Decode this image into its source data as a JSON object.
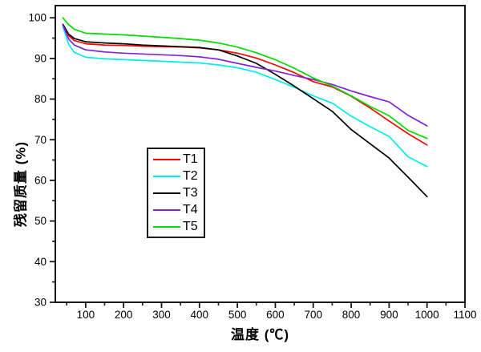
{
  "chart_data": {
    "type": "line",
    "title": "",
    "xlabel": "温度 (℃)",
    "ylabel": "残留质量 (%)",
    "xlim": [
      20,
      1100
    ],
    "ylim": [
      30,
      103
    ],
    "grid": false,
    "legend_position": "inside-center-left",
    "axis_color": "#1a1a1a",
    "x_major_ticks": [
      100,
      200,
      300,
      400,
      500,
      600,
      700,
      800,
      900,
      1000,
      1100
    ],
    "x_minor_step": 50,
    "y_major_ticks": [
      30,
      40,
      50,
      60,
      70,
      80,
      90,
      100
    ],
    "y_minor_step": 5,
    "x": [
      40,
      55,
      70,
      100,
      150,
      200,
      250,
      300,
      350,
      400,
      450,
      500,
      550,
      600,
      650,
      700,
      750,
      800,
      850,
      900,
      950,
      1000
    ],
    "series": [
      {
        "name": "T1",
        "color": "#ff0000",
        "values": [
          98.3,
          95.6,
          94.4,
          93.6,
          93.3,
          93.2,
          93.0,
          92.9,
          92.8,
          92.6,
          92.1,
          91.3,
          90.1,
          88.4,
          86.5,
          84.3,
          83.0,
          80.7,
          77.8,
          74.6,
          71.5,
          68.7
        ]
      },
      {
        "name": "T2",
        "color": "#00eded",
        "values": [
          97.8,
          93.5,
          91.5,
          90.3,
          89.9,
          89.7,
          89.5,
          89.3,
          89.1,
          88.9,
          88.4,
          87.7,
          86.6,
          84.8,
          82.9,
          80.8,
          79.0,
          75.8,
          73.2,
          70.8,
          65.8,
          63.4
        ]
      },
      {
        "name": "T3",
        "color": "#000000",
        "values": [
          98.4,
          96.0,
          94.9,
          94.1,
          93.8,
          93.6,
          93.3,
          93.1,
          92.9,
          92.7,
          92.1,
          90.6,
          88.8,
          86.1,
          83.2,
          80.1,
          77.0,
          72.5,
          69.0,
          65.5,
          60.8,
          56.0
        ]
      },
      {
        "name": "T4",
        "color": "#8322dd",
        "values": [
          98.2,
          94.8,
          93.3,
          92.1,
          91.6,
          91.3,
          91.1,
          90.9,
          90.7,
          90.4,
          89.8,
          88.8,
          87.8,
          86.9,
          85.8,
          84.8,
          83.6,
          82.0,
          80.6,
          79.3,
          76.0,
          73.4
        ]
      },
      {
        "name": "T5",
        "color": "#00dd00",
        "values": [
          100.0,
          98.3,
          97.2,
          96.2,
          96.0,
          95.8,
          95.5,
          95.2,
          94.9,
          94.5,
          93.8,
          92.8,
          91.4,
          89.7,
          87.6,
          85.2,
          83.2,
          80.8,
          78.2,
          75.9,
          72.3,
          70.3
        ]
      }
    ]
  }
}
